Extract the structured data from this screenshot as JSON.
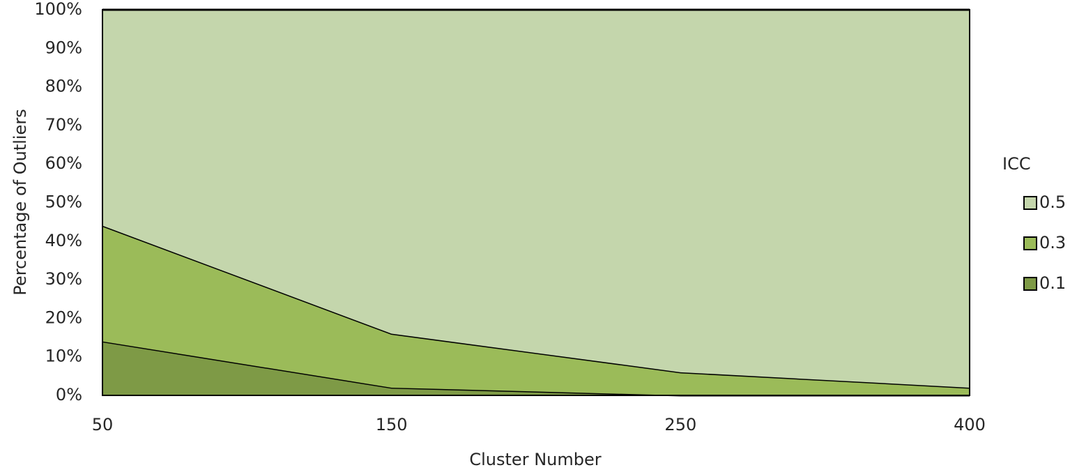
{
  "chart_data": {
    "type": "stacked-area-100",
    "x_label": "Cluster Number",
    "y_label": "Percentage of Outliers",
    "legend_title": "ICC",
    "categories": [
      "50",
      "150",
      "250",
      "400"
    ],
    "series": [
      {
        "name": "0.1",
        "color": "#7e9a46",
        "values": [
          14,
          2,
          0,
          0
        ]
      },
      {
        "name": "0.3",
        "color": "#9bbb59",
        "values": [
          30,
          14,
          6,
          2
        ]
      },
      {
        "name": "0.5",
        "color": "#c4d6ac",
        "values": [
          56,
          84,
          94,
          98
        ]
      }
    ],
    "ylim": [
      0,
      100
    ],
    "yticks": [
      {
        "value": 0,
        "label": "0%"
      },
      {
        "value": 10,
        "label": "10%"
      },
      {
        "value": 20,
        "label": "20%"
      },
      {
        "value": 30,
        "label": "30%"
      },
      {
        "value": 40,
        "label": "40%"
      },
      {
        "value": 50,
        "label": "50%"
      },
      {
        "value": 60,
        "label": "60%"
      },
      {
        "value": 70,
        "label": "70%"
      },
      {
        "value": 80,
        "label": "80%"
      },
      {
        "value": 90,
        "label": "90%"
      },
      {
        "value": 100,
        "label": "100%"
      }
    ],
    "legend_position": "right"
  }
}
